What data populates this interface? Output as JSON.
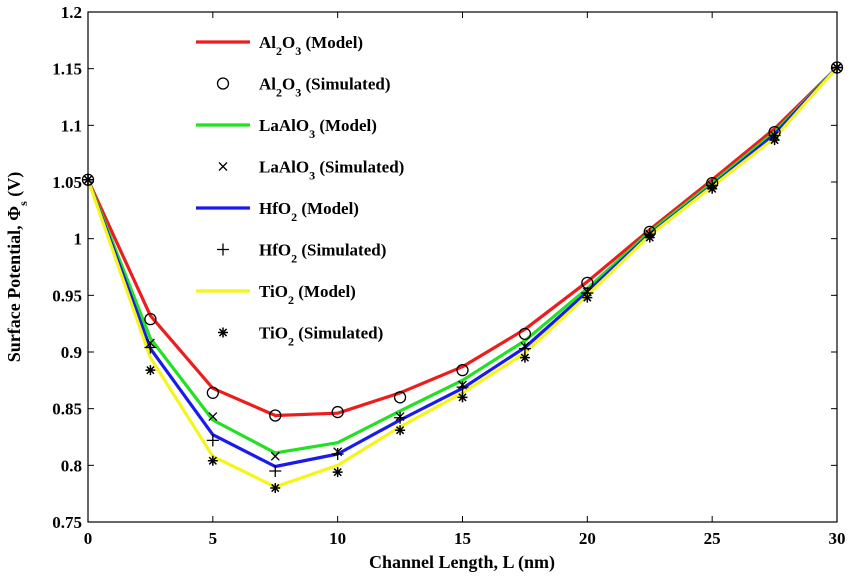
{
  "chart_data": {
    "type": "line",
    "title": "",
    "xlabel": "Channel Length, L (nm)",
    "ylabel": "Surface Potential, Φs (V)",
    "xlim": [
      0,
      30
    ],
    "ylim": [
      0.75,
      1.2
    ],
    "xticks": [
      0,
      5,
      10,
      15,
      20,
      25,
      30
    ],
    "xtick_labels": [
      "0",
      "5",
      "10",
      "15",
      "20",
      "25",
      "30"
    ],
    "yticks": [
      0.75,
      0.8,
      0.85,
      0.9,
      0.95,
      1.0,
      1.05,
      1.1,
      1.15,
      1.2
    ],
    "ytick_labels": [
      "0.75",
      "0.8",
      "0.85",
      "0.9",
      "0.95",
      "1",
      "1.05",
      "1.1",
      "1.15",
      "1.2"
    ],
    "grid": false,
    "legend_position": "top-left",
    "model_x": [
      0,
      2.5,
      5,
      7.5,
      10,
      12.5,
      15,
      17.5,
      20,
      22.5,
      25,
      27.5,
      30
    ],
    "sim_x": [
      0,
      2.5,
      5,
      7.5,
      10,
      12.5,
      15,
      17.5,
      20,
      22.5,
      25,
      27.5,
      30
    ],
    "series": [
      {
        "name": "Al2O3 (Model)",
        "kind": "line",
        "color": "#ee1c1c",
        "values": [
          1.052,
          0.932,
          0.868,
          0.844,
          0.846,
          0.864,
          0.887,
          0.92,
          0.962,
          1.008,
          1.052,
          1.097,
          1.151
        ]
      },
      {
        "name": "Al2O3 (Simulated)",
        "kind": "marker",
        "marker": "circle",
        "values": [
          1.052,
          0.929,
          0.864,
          0.844,
          0.847,
          0.86,
          0.884,
          0.916,
          0.961,
          1.006,
          1.049,
          1.094,
          1.151
        ]
      },
      {
        "name": "LaAlO3 (Model)",
        "kind": "line",
        "color": "#22e022",
        "values": [
          1.052,
          0.912,
          0.84,
          0.811,
          0.82,
          0.848,
          0.875,
          0.91,
          0.956,
          1.006,
          1.049,
          1.094,
          1.151
        ]
      },
      {
        "name": "LaAlO3 (Simulated)",
        "kind": "marker",
        "marker": "x",
        "values": [
          1.052,
          0.908,
          0.843,
          0.808,
          0.812,
          0.843,
          0.871,
          0.905,
          0.953,
          1.004,
          1.047,
          1.091,
          1.151
        ]
      },
      {
        "name": "HfO2 (Model)",
        "kind": "line",
        "color": "#1a1aee",
        "values": [
          1.052,
          0.903,
          0.827,
          0.799,
          0.81,
          0.84,
          0.868,
          0.904,
          0.953,
          1.004,
          1.047,
          1.092,
          1.151
        ]
      },
      {
        "name": "HfO2 (Simulated)",
        "kind": "marker",
        "marker": "plus",
        "values": [
          1.052,
          0.904,
          0.822,
          0.795,
          0.81,
          0.842,
          0.869,
          0.903,
          0.952,
          1.004,
          1.047,
          1.091,
          1.151
        ]
      },
      {
        "name": "TiO2 (Model)",
        "kind": "line",
        "color": "#f5f51a",
        "values": [
          1.052,
          0.895,
          0.808,
          0.781,
          0.8,
          0.834,
          0.864,
          0.899,
          0.95,
          1.003,
          1.046,
          1.089,
          1.151
        ]
      },
      {
        "name": "TiO2 (Simulated)",
        "kind": "marker",
        "marker": "asterisk",
        "values": [
          1.052,
          0.884,
          0.804,
          0.78,
          0.794,
          0.831,
          0.86,
          0.895,
          0.948,
          1.001,
          1.044,
          1.087,
          1.151
        ]
      }
    ],
    "legend": [
      {
        "kind": "line",
        "color": "#ee1c1c",
        "parts": [
          [
            "Al",
            ""
          ],
          [
            "2",
            "sub"
          ],
          [
            "O",
            ""
          ],
          [
            "3",
            "sub"
          ],
          [
            " (Model)",
            ""
          ]
        ]
      },
      {
        "kind": "marker",
        "marker": "circle",
        "parts": [
          [
            "Al",
            ""
          ],
          [
            "2",
            "sub"
          ],
          [
            "O",
            ""
          ],
          [
            "3",
            "sub"
          ],
          [
            " (Simulated)",
            ""
          ]
        ]
      },
      {
        "kind": "line",
        "color": "#22e022",
        "parts": [
          [
            "LaAlO",
            ""
          ],
          [
            "3",
            "sub"
          ],
          [
            " (Model)",
            ""
          ]
        ]
      },
      {
        "kind": "marker",
        "marker": "x",
        "parts": [
          [
            "LaAlO",
            ""
          ],
          [
            "3",
            "sub"
          ],
          [
            " (Simulated)",
            ""
          ]
        ]
      },
      {
        "kind": "line",
        "color": "#1a1aee",
        "parts": [
          [
            "HfO",
            ""
          ],
          [
            "2",
            "sub"
          ],
          [
            " (Model)",
            ""
          ]
        ]
      },
      {
        "kind": "marker",
        "marker": "plus",
        "parts": [
          [
            "HfO",
            ""
          ],
          [
            "2",
            "sub"
          ],
          [
            " (Simulated)",
            ""
          ]
        ]
      },
      {
        "kind": "line",
        "color": "#f5f51a",
        "parts": [
          [
            "TiO",
            ""
          ],
          [
            "2",
            "sub"
          ],
          [
            " (Model)",
            ""
          ]
        ]
      },
      {
        "kind": "marker",
        "marker": "asterisk",
        "parts": [
          [
            "TiO",
            ""
          ],
          [
            "2",
            "sub"
          ],
          [
            " (Simulated)",
            ""
          ]
        ]
      }
    ],
    "ylabel_parts": [
      [
        "Surface Potential, Φ",
        ""
      ],
      [
        "s",
        "sub"
      ],
      [
        " (V)",
        ""
      ]
    ]
  }
}
